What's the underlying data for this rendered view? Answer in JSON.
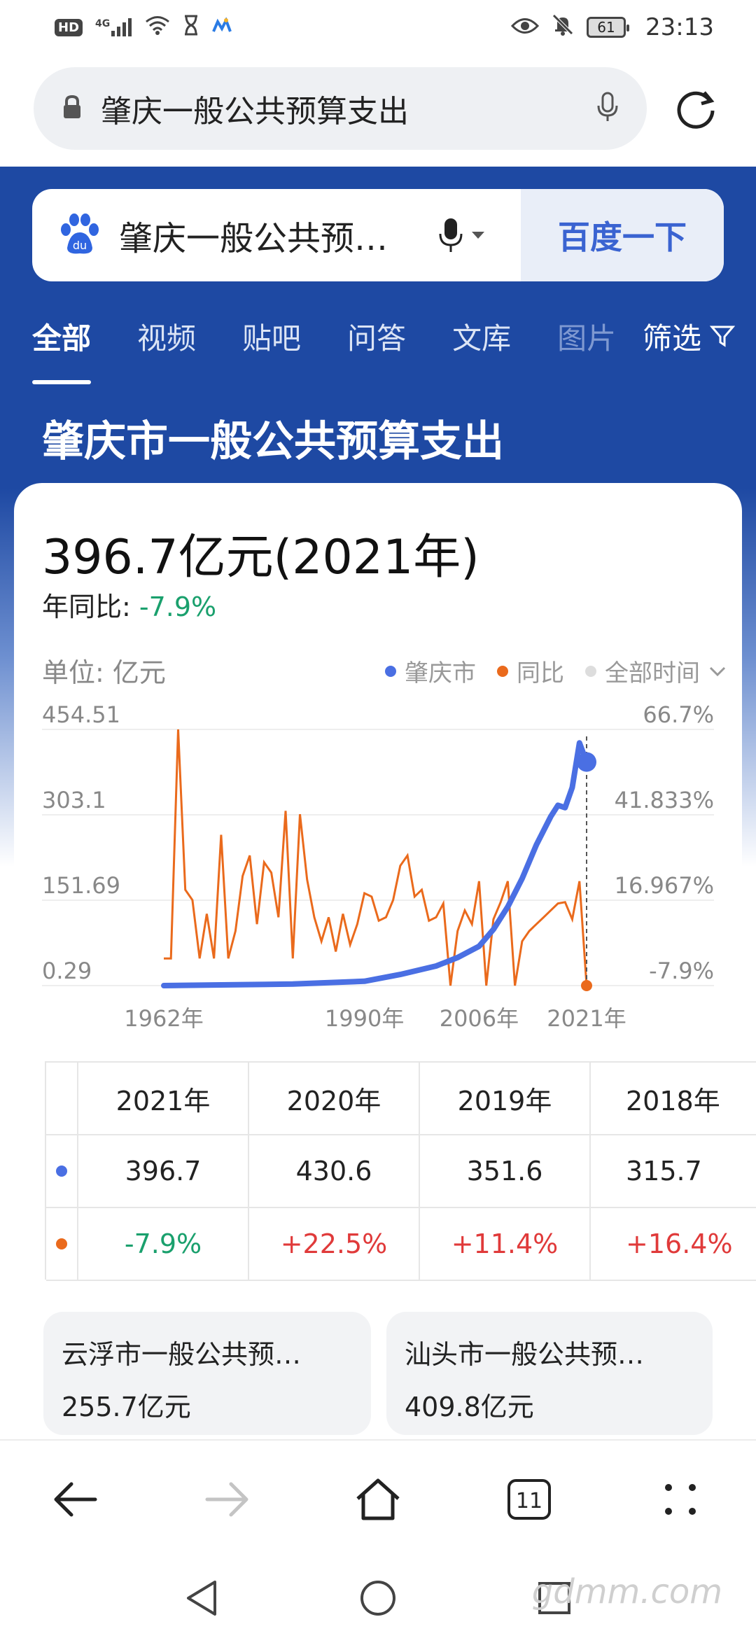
{
  "status_bar": {
    "time": "23:13",
    "hd": "HD",
    "network": "4G",
    "battery": "61"
  },
  "browser": {
    "url_text": "肇庆一般公共预算支出"
  },
  "search": {
    "query": "肇庆一般公共预…",
    "button": "百度一下"
  },
  "tabs": [
    "全部",
    "视频",
    "贴吧",
    "问答",
    "文库"
  ],
  "tab_faded": "图片",
  "filter_label": "筛选",
  "page_title": "肇庆市一般公共预算支出",
  "headline": {
    "value": "396.7亿元(2021年)",
    "yoy_label": "年同比:",
    "yoy_value": "-7.9%"
  },
  "unit": "单位: 亿元",
  "legend": {
    "series1": "肇庆市",
    "series2": "同比",
    "range": "全部时间"
  },
  "colors": {
    "blue_series": "#4a6fe3",
    "orange_series": "#ea6a1c",
    "positive": "#e03a3a",
    "negative": "#1aa06d"
  },
  "chart_data": {
    "type": "line",
    "x_ticks": [
      "1962年",
      "1990年",
      "2006年",
      "2021年"
    ],
    "left_axis_ticks": [
      "454.51",
      "303.1",
      "151.69",
      "0.29"
    ],
    "right_axis_ticks": [
      "66.7%",
      "41.833%",
      "16.967%",
      "-7.9%"
    ],
    "ylim_left": [
      0.29,
      454.51
    ],
    "ylim_right": [
      -7.9,
      66.7
    ],
    "series": [
      {
        "name": "肇庆市",
        "x": [
          1962,
          1970,
          1980,
          1990,
          1995,
          2000,
          2003,
          2006,
          2008,
          2010,
          2012,
          2014,
          2016,
          2017,
          2018,
          2019,
          2020,
          2021
        ],
        "values": [
          0.29,
          1.5,
          3,
          8,
          20,
          35,
          50,
          70,
          100,
          140,
          190,
          250,
          300,
          320,
          315.7,
          351.6,
          430.6,
          396.7
        ]
      },
      {
        "name": "同比",
        "x": [
          1962,
          1963,
          1964,
          1965,
          1966,
          1967,
          1968,
          1969,
          1970,
          1971,
          1972,
          1973,
          1974,
          1975,
          1976,
          1977,
          1978,
          1979,
          1980,
          1981,
          1982,
          1983,
          1984,
          1985,
          1986,
          1987,
          1988,
          1989,
          1990,
          1991,
          1992,
          1993,
          1994,
          1995,
          1996,
          1997,
          1998,
          1999,
          2000,
          2001,
          2002,
          2003,
          2004,
          2005,
          2006,
          2007,
          2008,
          2009,
          2010,
          2011,
          2012,
          2013,
          2014,
          2015,
          2016,
          2017,
          2018,
          2019,
          2020,
          2021
        ],
        "values": [
          0,
          0,
          66.7,
          20,
          17,
          0,
          13,
          0,
          36,
          0,
          8,
          24,
          30,
          10,
          28,
          25,
          12,
          43,
          0,
          42,
          23,
          12,
          5,
          12,
          2,
          13,
          4,
          10,
          19,
          18,
          11,
          12,
          17,
          27,
          30,
          18,
          20,
          11,
          12,
          16,
          -7.9,
          8,
          14,
          10,
          22.5,
          -7.9,
          11.4,
          16.4,
          22.5,
          -7.9,
          5,
          8,
          10,
          12,
          14,
          16,
          16.4,
          11.4,
          22.5,
          -7.9
        ]
      }
    ]
  },
  "table": {
    "years": [
      "2021年",
      "2020年",
      "2019年",
      "2018年"
    ],
    "values": [
      "396.7",
      "430.6",
      "351.6",
      "315.7"
    ],
    "yoy": [
      "-7.9%",
      "+22.5%",
      "+11.4%",
      "+16.4%"
    ]
  },
  "related": [
    {
      "title": "云浮市一般公共预…",
      "value": "255.7亿元"
    },
    {
      "title": "汕头市一般公共预…",
      "value": "409.8亿元"
    }
  ],
  "bottom_nav": {
    "tabs_count": "11"
  },
  "watermark": "gdmm.com"
}
